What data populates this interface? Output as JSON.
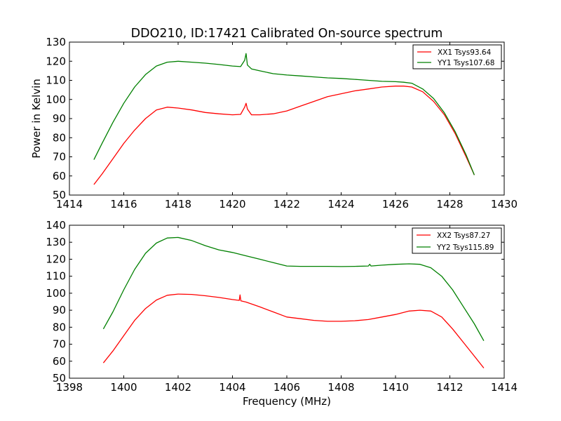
{
  "chart_data": [
    {
      "type": "line",
      "title": "DDO210, ID:17421 Calibrated On-source spectrum",
      "xlabel": "",
      "ylabel": "Power in Kelvin",
      "xlim": [
        1414,
        1430
      ],
      "ylim": [
        50,
        130
      ],
      "xticks": [
        "1414",
        "1416",
        "1418",
        "1420",
        "1422",
        "1424",
        "1426",
        "1428",
        "1430"
      ],
      "yticks": [
        "50",
        "60",
        "70",
        "80",
        "90",
        "100",
        "110",
        "120",
        "130"
      ],
      "grid": false,
      "legend": "top-right",
      "series": [
        {
          "name": "XX1 Tsys93.64",
          "color": "#ff0000",
          "x": [
            1414.9,
            1415.2,
            1415.6,
            1416.0,
            1416.4,
            1416.8,
            1417.2,
            1417.6,
            1418.0,
            1418.5,
            1419.0,
            1419.5,
            1420.0,
            1420.3,
            1420.45,
            1420.5,
            1420.55,
            1420.7,
            1421.0,
            1421.5,
            1422.0,
            1422.5,
            1423.0,
            1423.5,
            1424.0,
            1424.5,
            1425.0,
            1425.5,
            1426.0,
            1426.3,
            1426.6,
            1427.0,
            1427.4,
            1427.8,
            1428.2,
            1428.6,
            1428.9
          ],
          "y": [
            55.5,
            61,
            69,
            77,
            84,
            90,
            94.5,
            96,
            95.5,
            94.5,
            93.2,
            92.5,
            92,
            92.2,
            96,
            98,
            95,
            92,
            92,
            92.5,
            94,
            96.5,
            99,
            101.5,
            103,
            104.5,
            105.5,
            106.5,
            107,
            107,
            106.5,
            104,
            99,
            92,
            82,
            70,
            60.5
          ]
        },
        {
          "name": "YY1 Tsys107.68",
          "color": "#008000",
          "x": [
            1414.9,
            1415.2,
            1415.6,
            1416.0,
            1416.4,
            1416.8,
            1417.2,
            1417.6,
            1418.0,
            1418.5,
            1419.0,
            1419.5,
            1420.0,
            1420.3,
            1420.45,
            1420.5,
            1420.55,
            1420.7,
            1421.0,
            1421.5,
            1422.0,
            1422.5,
            1423.0,
            1423.5,
            1424.0,
            1424.5,
            1425.0,
            1425.5,
            1426.0,
            1426.3,
            1426.6,
            1427.0,
            1427.4,
            1427.8,
            1428.2,
            1428.6,
            1428.9
          ],
          "y": [
            68.5,
            77,
            88,
            98,
            106.5,
            113,
            117.5,
            119.5,
            120,
            119.5,
            119,
            118.3,
            117.5,
            117.2,
            120.5,
            124,
            118,
            116,
            115,
            113.5,
            112.8,
            112.3,
            111.8,
            111.3,
            111,
            110.5,
            110,
            109.5,
            109.3,
            109,
            108.5,
            105.5,
            100.5,
            93,
            83,
            71,
            60.5
          ]
        }
      ]
    },
    {
      "type": "line",
      "title": "",
      "xlabel": "Frequency (MHz)",
      "ylabel": "",
      "xlim": [
        1398,
        1414
      ],
      "ylim": [
        50,
        140
      ],
      "xticks": [
        "1398",
        "1400",
        "1402",
        "1404",
        "1406",
        "1408",
        "1410",
        "1412",
        "1414"
      ],
      "yticks": [
        "50",
        "60",
        "70",
        "80",
        "90",
        "100",
        "110",
        "120",
        "130",
        "140"
      ],
      "grid": false,
      "legend": "top-right",
      "series": [
        {
          "name": "XX2 Tsys87.27",
          "color": "#ff0000",
          "x": [
            1399.25,
            1399.6,
            1400.0,
            1400.4,
            1400.8,
            1401.2,
            1401.6,
            1402.0,
            1402.5,
            1403.0,
            1403.5,
            1404.0,
            1404.25,
            1404.28,
            1404.31,
            1404.5,
            1405.0,
            1405.5,
            1406.0,
            1406.5,
            1407.0,
            1407.5,
            1408.0,
            1408.5,
            1409.0,
            1409.5,
            1410.0,
            1410.5,
            1410.9,
            1411.3,
            1411.7,
            1412.1,
            1412.5,
            1412.9,
            1413.25
          ],
          "y": [
            59,
            66,
            75,
            84,
            91,
            96,
            98.8,
            99.5,
            99.3,
            98.5,
            97.5,
            96.3,
            95.8,
            99,
            95.5,
            94.8,
            92,
            89,
            86,
            85,
            84,
            83.5,
            83.5,
            83.8,
            84.5,
            86,
            87.5,
            89.5,
            90,
            89.5,
            86,
            79,
            71,
            63,
            56
          ]
        },
        {
          "name": "YY2 Tsys115.89",
          "color": "#008000",
          "x": [
            1399.25,
            1399.6,
            1400.0,
            1400.4,
            1400.8,
            1401.2,
            1401.6,
            1402.0,
            1402.5,
            1403.0,
            1403.5,
            1404.0,
            1404.5,
            1405.0,
            1405.5,
            1406.0,
            1406.5,
            1407.0,
            1407.5,
            1408.0,
            1408.5,
            1409.0,
            1409.05,
            1409.1,
            1409.5,
            1410.0,
            1410.5,
            1410.9,
            1411.3,
            1411.7,
            1412.1,
            1412.5,
            1412.9,
            1413.25
          ],
          "y": [
            79,
            89,
            102,
            114,
            123.5,
            129.5,
            132.5,
            132.8,
            131,
            128,
            125.5,
            124,
            122,
            120,
            118,
            116,
            115.8,
            115.8,
            115.8,
            115.7,
            115.8,
            116,
            117,
            116,
            116.5,
            117,
            117.3,
            117,
            115,
            110,
            102,
            92,
            82,
            72
          ]
        }
      ]
    }
  ]
}
